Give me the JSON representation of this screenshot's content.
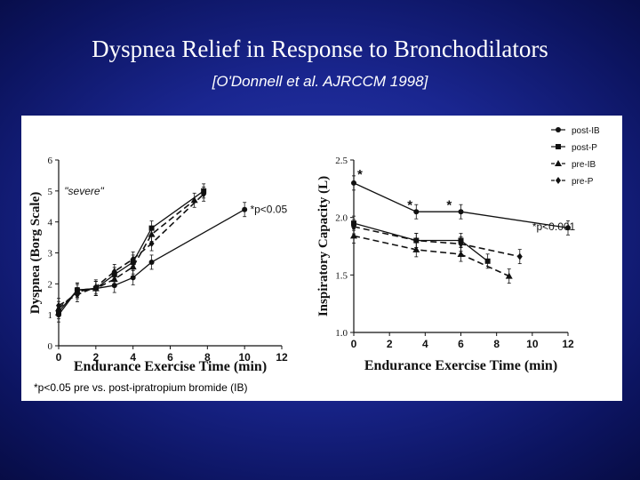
{
  "slide": {
    "title": "Dyspnea Relief in Response to Bronchodilators",
    "subtitle": "[O'Donnell et al.  AJRCCM 1998]",
    "footnote": "*p<0.05 pre vs. post-ipratropium bromide (IB)"
  },
  "colors": {
    "background": "#1a2690",
    "text": "#ffffff",
    "panel": "#ffffff",
    "ink": "#111111"
  },
  "legend": [
    {
      "name": "post-IB",
      "marker": "circle",
      "dash": "solid"
    },
    {
      "name": "post-P",
      "marker": "square",
      "dash": "solid"
    },
    {
      "name": "pre-IB",
      "marker": "triangle",
      "dash": "dashed"
    },
    {
      "name": "pre-P",
      "marker": "diamond",
      "dash": "dashed"
    }
  ],
  "chart_data": [
    {
      "type": "line",
      "xlabel": "Endurance Exercise Time (min)",
      "ylabel": "Dyspnea   (Borg Scale)",
      "xlim": [
        0,
        12
      ],
      "ylim": [
        0,
        6
      ],
      "xticks": [
        "0",
        "2",
        "4",
        "6",
        "8",
        "10",
        "12"
      ],
      "yticks": [
        "0",
        "1",
        "2",
        "3",
        "4",
        "5",
        "6"
      ],
      "annotations": [
        {
          "text": "\"severe\"",
          "x": 0.3,
          "y": 5.0
        },
        {
          "text": "*p<0.05",
          "x": 10.3,
          "y": 4.4
        }
      ],
      "series": [
        {
          "name": "post-IB",
          "x": [
            0,
            1,
            2,
            3,
            4,
            5,
            10
          ],
          "y": [
            1.0,
            1.8,
            1.85,
            1.95,
            2.2,
            2.7,
            4.4
          ]
        },
        {
          "name": "post-P",
          "x": [
            0,
            1,
            2,
            3,
            4,
            5,
            7.8
          ],
          "y": [
            1.1,
            1.8,
            1.85,
            2.3,
            2.7,
            3.8,
            5.0
          ]
        },
        {
          "name": "pre-IB",
          "x": [
            0,
            1,
            2,
            3,
            4,
            5,
            7.3
          ],
          "y": [
            1.2,
            1.75,
            1.85,
            2.15,
            2.55,
            3.6,
            4.7
          ]
        },
        {
          "name": "pre-P",
          "x": [
            0,
            1,
            2,
            3,
            4,
            5,
            7.8
          ],
          "y": [
            1.3,
            1.65,
            1.9,
            2.4,
            2.8,
            3.3,
            4.9
          ]
        }
      ]
    },
    {
      "type": "line",
      "xlabel": "Endurance Exercise Time (min)",
      "ylabel": "Inspiratory Capacity  (L)",
      "xlim": [
        0,
        12
      ],
      "ylim": [
        1.0,
        2.5
      ],
      "xticks": [
        "0",
        "2",
        "4",
        "6",
        "8",
        "10",
        "12"
      ],
      "yticks": [
        "1.0",
        "1.5",
        "2.0",
        "2.5"
      ],
      "annotations": [
        {
          "text": "*",
          "x": 0.2,
          "y": 2.37
        },
        {
          "text": "*",
          "x": 3.0,
          "y": 2.1
        },
        {
          "text": "*",
          "x": 5.2,
          "y": 2.1
        },
        {
          "text": "*p<0.001",
          "x": 10.0,
          "y": 1.92
        }
      ],
      "series": [
        {
          "name": "post-IB",
          "x": [
            0,
            3.5,
            6,
            12
          ],
          "y": [
            2.3,
            2.05,
            2.05,
            1.91
          ]
        },
        {
          "name": "post-P",
          "x": [
            0,
            3.5,
            6,
            7.5
          ],
          "y": [
            1.95,
            1.8,
            1.8,
            1.62
          ]
        },
        {
          "name": "pre-IB",
          "x": [
            0,
            3.5,
            6,
            8.7
          ],
          "y": [
            1.84,
            1.72,
            1.68,
            1.49
          ]
        },
        {
          "name": "pre-P",
          "x": [
            0,
            3.5,
            6,
            9.3
          ],
          "y": [
            1.92,
            1.8,
            1.77,
            1.66
          ]
        }
      ]
    }
  ]
}
